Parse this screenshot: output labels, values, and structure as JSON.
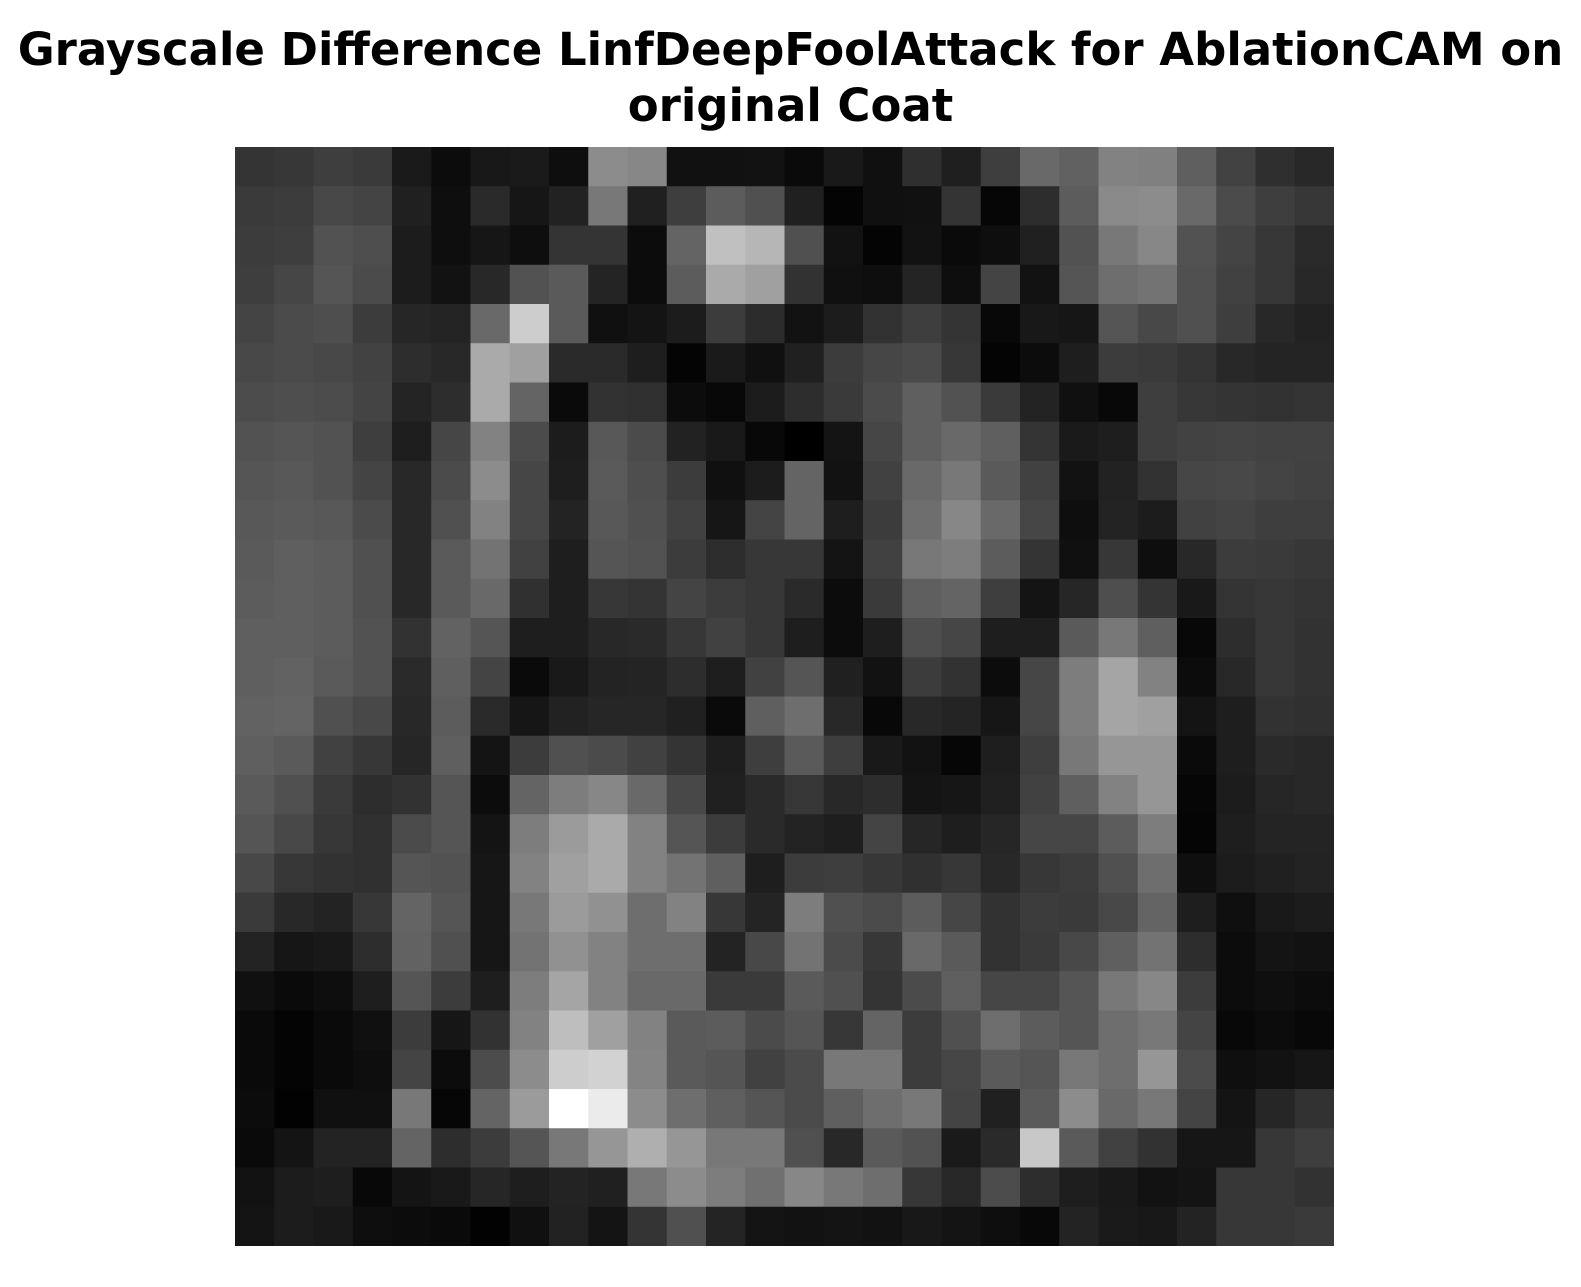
{
  "chart_data": {
    "type": "heatmap",
    "title": "Grayscale Difference LinfDeepFoolAttack for AblationCAM on original Coat",
    "title_lines": [
      "Grayscale Difference LinfDeepFoolAttack for AblationCAM on",
      "original Coat"
    ],
    "colormap": "gray",
    "axes_visible": false,
    "rows": 28,
    "cols": 28,
    "value_range": [
      0,
      255
    ],
    "values": [
      [
        52,
        55,
        62,
        58,
        26,
        12,
        24,
        26,
        14,
        140,
        135,
        17,
        17,
        18,
        10,
        25,
        16,
        47,
        31,
        62,
        105,
        97,
        130,
        128,
        95,
        66,
        47,
        40
      ],
      [
        58,
        60,
        72,
        68,
        32,
        14,
        42,
        22,
        34,
        120,
        32,
        62,
        92,
        80,
        32,
        4,
        16,
        17,
        52,
        6,
        45,
        92,
        138,
        140,
        105,
        75,
        62,
        55
      ],
      [
        60,
        62,
        82,
        78,
        28,
        14,
        22,
        14,
        52,
        52,
        12,
        100,
        192,
        182,
        80,
        18,
        4,
        18,
        10,
        14,
        32,
        82,
        120,
        135,
        82,
        68,
        55,
        42
      ],
      [
        62,
        70,
        85,
        75,
        28,
        18,
        40,
        82,
        90,
        36,
        12,
        92,
        170,
        160,
        50,
        16,
        14,
        36,
        14,
        68,
        18,
        85,
        110,
        115,
        80,
        65,
        55,
        40
      ],
      [
        68,
        75,
        78,
        60,
        38,
        36,
        105,
        205,
        90,
        16,
        20,
        28,
        60,
        44,
        18,
        28,
        50,
        62,
        52,
        8,
        24,
        22,
        85,
        72,
        80,
        62,
        40,
        34
      ],
      [
        72,
        75,
        72,
        66,
        45,
        40,
        170,
        160,
        42,
        42,
        30,
        4,
        26,
        16,
        32,
        60,
        70,
        74,
        55,
        4,
        12,
        30,
        60,
        58,
        52,
        40,
        36,
        36
      ],
      [
        76,
        78,
        76,
        68,
        36,
        45,
        170,
        100,
        10,
        50,
        48,
        12,
        8,
        28,
        45,
        58,
        75,
        95,
        82,
        58,
        35,
        16,
        8,
        62,
        55,
        52,
        50,
        52
      ],
      [
        82,
        85,
        82,
        62,
        30,
        70,
        130,
        75,
        28,
        88,
        75,
        34,
        25,
        8,
        0,
        20,
        70,
        95,
        105,
        95,
        52,
        26,
        30,
        62,
        66,
        68,
        66,
        66
      ],
      [
        85,
        88,
        82,
        68,
        40,
        75,
        140,
        70,
        30,
        90,
        78,
        60,
        16,
        28,
        100,
        18,
        65,
        105,
        120,
        90,
        65,
        18,
        34,
        50,
        70,
        72,
        68,
        65
      ],
      [
        88,
        90,
        88,
        75,
        40,
        80,
        130,
        70,
        35,
        88,
        80,
        65,
        22,
        68,
        100,
        30,
        60,
        110,
        135,
        105,
        70,
        14,
        35,
        28,
        65,
        68,
        62,
        62
      ],
      [
        90,
        95,
        92,
        80,
        40,
        90,
        115,
        65,
        30,
        85,
        82,
        60,
        45,
        55,
        55,
        20,
        65,
        120,
        125,
        92,
        52,
        16,
        55,
        14,
        40,
        60,
        58,
        55
      ],
      [
        92,
        95,
        92,
        80,
        40,
        90,
        105,
        48,
        30,
        55,
        52,
        68,
        60,
        55,
        42,
        12,
        58,
        95,
        100,
        62,
        20,
        38,
        78,
        52,
        25,
        52,
        55,
        52
      ],
      [
        95,
        95,
        92,
        82,
        50,
        98,
        85,
        30,
        30,
        40,
        42,
        55,
        65,
        55,
        30,
        12,
        30,
        78,
        70,
        30,
        30,
        90,
        120,
        95,
        8,
        45,
        55,
        50
      ],
      [
        95,
        98,
        90,
        82,
        42,
        95,
        68,
        10,
        25,
        35,
        36,
        45,
        30,
        65,
        85,
        32,
        18,
        60,
        50,
        12,
        70,
        125,
        165,
        130,
        12,
        40,
        55,
        50
      ],
      [
        98,
        100,
        80,
        72,
        40,
        92,
        42,
        22,
        34,
        38,
        38,
        32,
        10,
        95,
        110,
        40,
        8,
        40,
        36,
        22,
        70,
        125,
        165,
        160,
        20,
        30,
        50,
        48
      ],
      [
        95,
        90,
        65,
        55,
        38,
        95,
        20,
        60,
        80,
        75,
        65,
        52,
        30,
        62,
        90,
        62,
        25,
        18,
        6,
        30,
        62,
        120,
        150,
        150,
        10,
        30,
        42,
        40
      ],
      [
        90,
        80,
        58,
        45,
        50,
        85,
        12,
        100,
        125,
        135,
        105,
        72,
        32,
        42,
        55,
        40,
        45,
        20,
        22,
        32,
        65,
        95,
        130,
        150,
        6,
        28,
        38,
        40
      ],
      [
        85,
        72,
        55,
        48,
        75,
        85,
        20,
        125,
        155,
        170,
        130,
        85,
        60,
        42,
        35,
        30,
        68,
        38,
        30,
        38,
        70,
        70,
        92,
        125,
        5,
        30,
        36,
        36
      ],
      [
        72,
        55,
        50,
        48,
        85,
        82,
        22,
        130,
        160,
        170,
        130,
        115,
        95,
        30,
        60,
        62,
        55,
        48,
        55,
        40,
        55,
        60,
        80,
        110,
        15,
        28,
        32,
        35
      ],
      [
        58,
        40,
        35,
        55,
        100,
        85,
        22,
        120,
        155,
        145,
        110,
        130,
        55,
        36,
        125,
        80,
        75,
        92,
        70,
        50,
        60,
        58,
        72,
        100,
        30,
        15,
        25,
        28
      ],
      [
        35,
        22,
        25,
        45,
        98,
        80,
        22,
        115,
        145,
        130,
        110,
        110,
        35,
        72,
        115,
        75,
        55,
        105,
        90,
        50,
        58,
        72,
        95,
        115,
        45,
        12,
        20,
        18
      ],
      [
        16,
        10,
        14,
        30,
        85,
        60,
        30,
        125,
        165,
        130,
        105,
        105,
        58,
        58,
        90,
        80,
        52,
        75,
        95,
        70,
        70,
        85,
        120,
        135,
        60,
        12,
        15,
        12
      ],
      [
        10,
        4,
        10,
        16,
        60,
        22,
        50,
        130,
        190,
        160,
        130,
        90,
        92,
        75,
        85,
        55,
        100,
        60,
        80,
        110,
        92,
        85,
        110,
        120,
        68,
        8,
        12,
        8
      ],
      [
        10,
        4,
        10,
        14,
        68,
        12,
        76,
        140,
        205,
        210,
        132,
        90,
        85,
        65,
        75,
        120,
        120,
        60,
        70,
        90,
        85,
        120,
        110,
        150,
        75,
        15,
        18,
        22
      ],
      [
        12,
        2,
        16,
        16,
        120,
        6,
        100,
        155,
        255,
        235,
        140,
        110,
        95,
        85,
        75,
        95,
        110,
        120,
        68,
        32,
        90,
        140,
        105,
        120,
        68,
        20,
        38,
        50
      ],
      [
        10,
        20,
        35,
        35,
        100,
        45,
        60,
        85,
        120,
        150,
        175,
        150,
        120,
        120,
        80,
        40,
        90,
        82,
        26,
        42,
        200,
        90,
        65,
        50,
        22,
        22,
        55,
        62
      ],
      [
        18,
        28,
        30,
        8,
        20,
        25,
        38,
        30,
        35,
        32,
        120,
        140,
        125,
        112,
        135,
        120,
        110,
        55,
        40,
        76,
        45,
        30,
        25,
        18,
        20,
        55,
        55,
        50
      ],
      [
        20,
        28,
        25,
        14,
        12,
        10,
        2,
        16,
        34,
        20,
        52,
        80,
        36,
        20,
        18,
        20,
        18,
        24,
        20,
        14,
        8,
        35,
        26,
        24,
        35,
        55,
        55,
        58
      ]
    ]
  }
}
